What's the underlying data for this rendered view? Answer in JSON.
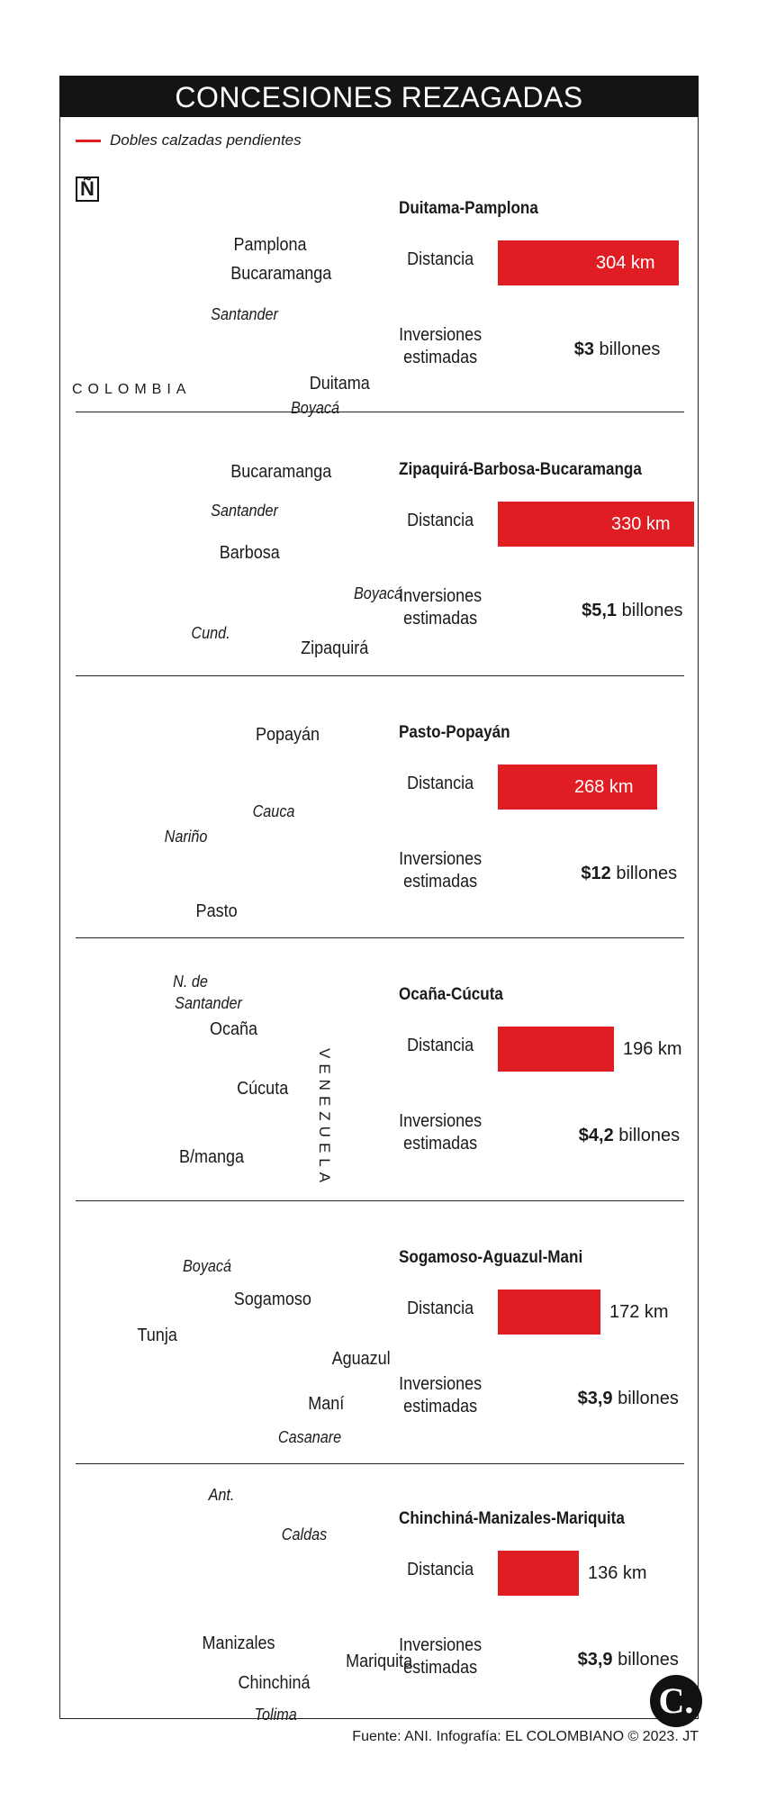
{
  "title": "CONCESIONES REZAGADAS",
  "legend": "Dobles calzadas pendientes",
  "country_label": "COLOMBIA",
  "north_symbol": "Ñ",
  "distance_label": "Distancia",
  "investment_label_1": "Inversiones",
  "investment_label_2": "estimadas",
  "unit_km": "km",
  "unit_billones": "billones",
  "colors": {
    "route": "#e11d24",
    "map": "#e3e1d3",
    "dark": "#141414"
  },
  "panels": [
    {
      "title": "Duitama-Pamplona",
      "distance": "304 km",
      "distance_value": 304,
      "investment": "$3",
      "investment_value": 3,
      "places": [
        "Pamplona",
        "Bucaramanga",
        "Santander",
        "Duitama",
        "Boyacá"
      ]
    },
    {
      "title": "Zipaquirá-Barbosa-Bucaramanga",
      "distance": "330 km",
      "distance_value": 330,
      "investment": "$5,1",
      "investment_value": 5.1,
      "places": [
        "Bucaramanga",
        "Santander",
        "Barbosa",
        "Boyacá",
        "Cund.",
        "Zipaquirá"
      ]
    },
    {
      "title": "Pasto-Popayán",
      "distance": "268 km",
      "distance_value": 268,
      "investment": "$12",
      "investment_value": 12,
      "places": [
        "Popayán",
        "Cauca",
        "Nariño",
        "Pasto"
      ]
    },
    {
      "title": "Ocaña-Cúcuta",
      "distance": "196  km",
      "distance_value": 196,
      "investment": "$4,2",
      "investment_value": 4.2,
      "places": [
        "N. de",
        "Santander",
        "Ocaña",
        "Cúcuta",
        "B/manga",
        "VENEZUELA"
      ]
    },
    {
      "title": "Sogamoso-Aguazul-Mani",
      "distance": "172 km",
      "distance_value": 172,
      "investment": "$3,9",
      "investment_value": 3.9,
      "places": [
        "Boyacá",
        "Sogamoso",
        "Tunja",
        "Aguazul",
        "Maní",
        "Casanare"
      ]
    },
    {
      "title": "Chinchiná-Manizales-Mariquita",
      "distance": "136  km",
      "distance_value": 136,
      "investment": "$3,9",
      "investment_value": 3.9,
      "places": [
        "Ant.",
        "Caldas",
        "Manizales",
        "Mariquita",
        "Chinchiná",
        "Tolima"
      ]
    }
  ],
  "source": "Fuente: ANI. Infografía: EL COLOMBIANO © 2023. JT",
  "logo_letter": "C."
}
